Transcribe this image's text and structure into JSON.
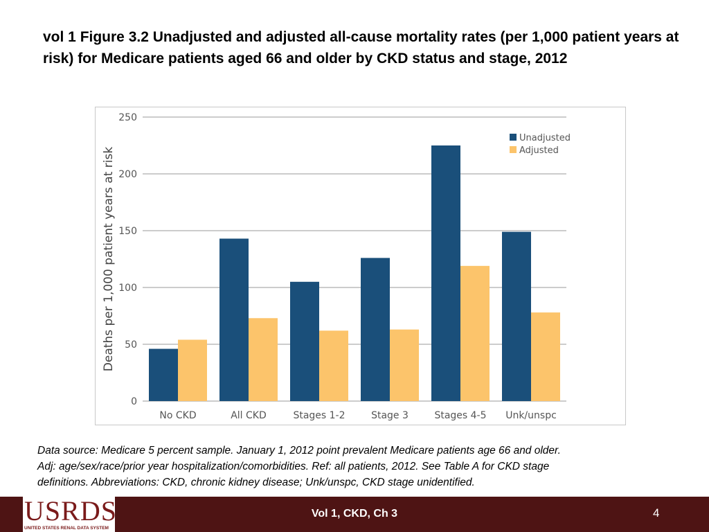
{
  "slide": {
    "title": "vol 1 Figure 3.2  Unadjusted and adjusted all-cause mortality rates (per 1,000 patient years at risk) for Medicare patients aged 66 and older by CKD status and stage, 2012",
    "caption_lines": [
      "Data source: Medicare 5 percent sample. January 1, 2012 point prevalent Medicare patients age 66 and older.",
      "Adj: age/sex/race/prior year hospitalization/comorbidities. Ref: all patients, 2012. See Table A for CKD stage",
      "definitions. Abbreviations: CKD, chronic kidney disease; Unk/unspc, CKD stage unidentified."
    ],
    "footer_text": "Vol 1, CKD, Ch 3",
    "page_number": "4",
    "logo_text": "USRDS",
    "logo_subtext": "UNITED STATES RENAL DATA SYSTEM"
  },
  "colors": {
    "unadjusted": "#1a4f7a",
    "adjusted": "#fcc46b",
    "grid": "#9a9a9a",
    "footer": "#4e1414"
  },
  "chart_data": {
    "type": "bar",
    "ylabel": "Deaths per 1,000 patient years at risk",
    "xlabel": "",
    "ylim": [
      0,
      250
    ],
    "yticks": [
      0,
      50,
      100,
      150,
      200,
      250
    ],
    "grid": true,
    "legend_position": "top-right",
    "categories": [
      "No CKD",
      "All CKD",
      "Stages 1-2",
      "Stage 3",
      "Stages 4-5",
      "Unk/unspc"
    ],
    "series": [
      {
        "name": "Unadjusted",
        "values": [
          46,
          143,
          105,
          126,
          225,
          149
        ]
      },
      {
        "name": "Adjusted",
        "values": [
          54,
          73,
          62,
          63,
          119,
          78
        ]
      }
    ]
  }
}
